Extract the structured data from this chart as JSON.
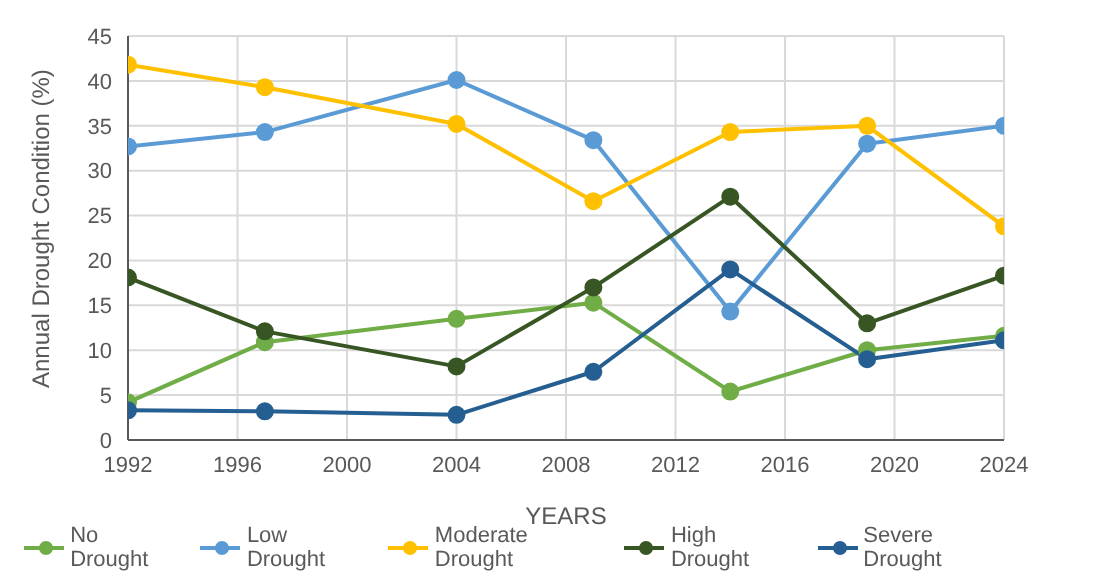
{
  "chart_data": {
    "type": "line",
    "xlabel": "YEARS",
    "ylabel": "Annual Drought Condition (%)",
    "x": [
      1992,
      1997,
      2004,
      2009,
      2014,
      2019,
      2024
    ],
    "xlim": [
      1992,
      2024
    ],
    "xticks": [
      1992,
      1996,
      2000,
      2004,
      2008,
      2012,
      2016,
      2020,
      2024
    ],
    "ylim": [
      0,
      45
    ],
    "yticks": [
      0,
      5,
      10,
      15,
      20,
      25,
      30,
      35,
      40,
      45
    ],
    "grid": true,
    "legend": "bottom",
    "marker": "circle",
    "line_style": "solid",
    "series": [
      {
        "name": "No Drought",
        "color": "#70ad47",
        "values": [
          4.2,
          10.9,
          13.5,
          15.3,
          5.4,
          10.0,
          11.6
        ]
      },
      {
        "name": "Low Drought",
        "color": "#5b9bd5",
        "values": [
          32.7,
          34.3,
          40.1,
          33.4,
          14.3,
          33.0,
          35.0
        ]
      },
      {
        "name": "Moderate Drought",
        "color": "#ffc000",
        "values": [
          41.8,
          39.3,
          35.2,
          26.6,
          34.3,
          35.0,
          23.8
        ]
      },
      {
        "name": "High Drought",
        "color": "#375623",
        "values": [
          18.1,
          12.1,
          8.2,
          17.0,
          27.1,
          13.0,
          18.3
        ]
      },
      {
        "name": "Severe Drought",
        "color": "#255e91",
        "values": [
          3.3,
          3.2,
          2.8,
          7.6,
          19.0,
          9.0,
          11.1
        ]
      }
    ]
  }
}
